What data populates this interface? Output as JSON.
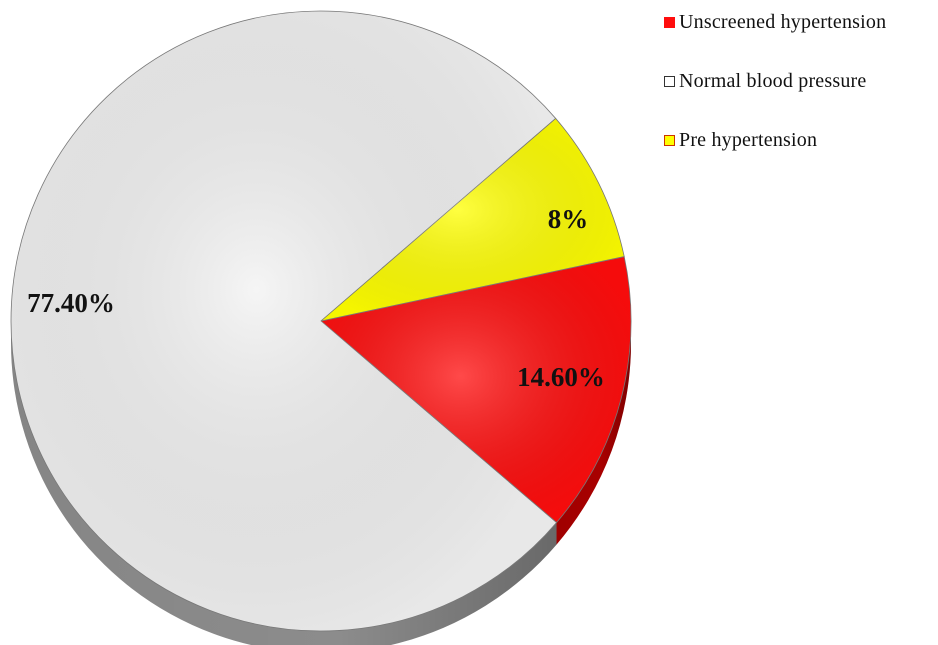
{
  "chart_data": {
    "type": "pie",
    "title": "",
    "categories": [
      "Unscreened hypertension",
      "Normal blood pressure",
      "Pre hypertension"
    ],
    "values": [
      14.6,
      77.4,
      8
    ],
    "labels": [
      "14.60%",
      "77.40%",
      "8%"
    ],
    "colors": [
      "#ff0d0d",
      "#f2f2f2",
      "#ffff00"
    ],
    "side_colors": [
      "#a80000",
      "#8c8c8c",
      "#a8a800"
    ],
    "legend_position": "top-right",
    "style": "3d"
  },
  "legend": {
    "items": [
      {
        "label": "Unscreened hypertension",
        "color": "#ff0d0d",
        "border": "#ff0d0d"
      },
      {
        "label": "Normal blood pressure",
        "color": "#ffffff",
        "border": "#333333"
      },
      {
        "label": "Pre hypertension",
        "color": "#ffff00",
        "border": "#cc3300"
      }
    ]
  }
}
